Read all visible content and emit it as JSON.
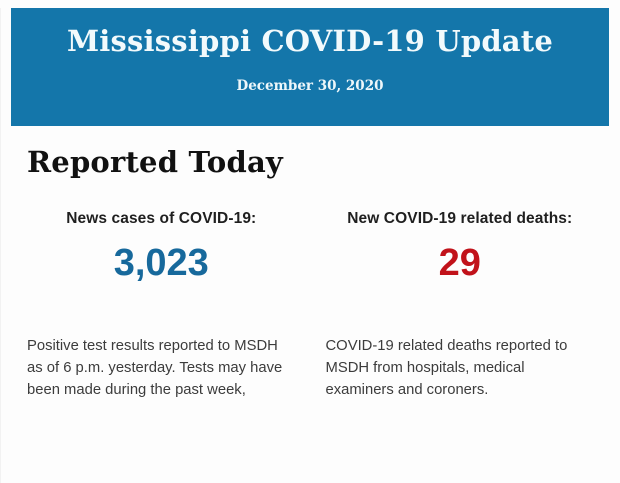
{
  "banner": {
    "title": "Mississippi COVID-19 Update",
    "date": "December 30, 2020",
    "background_color": "#1476aa",
    "text_color": "#f2fafc"
  },
  "main": {
    "heading": "Reported Today",
    "stats": [
      {
        "label": "News cases of COVID-19:",
        "value": "3,023",
        "value_color": "#17699c",
        "description": "Positive test results reported to MSDH as of 6 p.m. yesterday. Tests may have been made during the past week,"
      },
      {
        "label": "New COVID-19 related deaths:",
        "value": "29",
        "value_color": "#c1121a",
        "description": "COVID-19 related deaths reported to MSDH from hospitals, medical examiners and coroners."
      }
    ]
  }
}
